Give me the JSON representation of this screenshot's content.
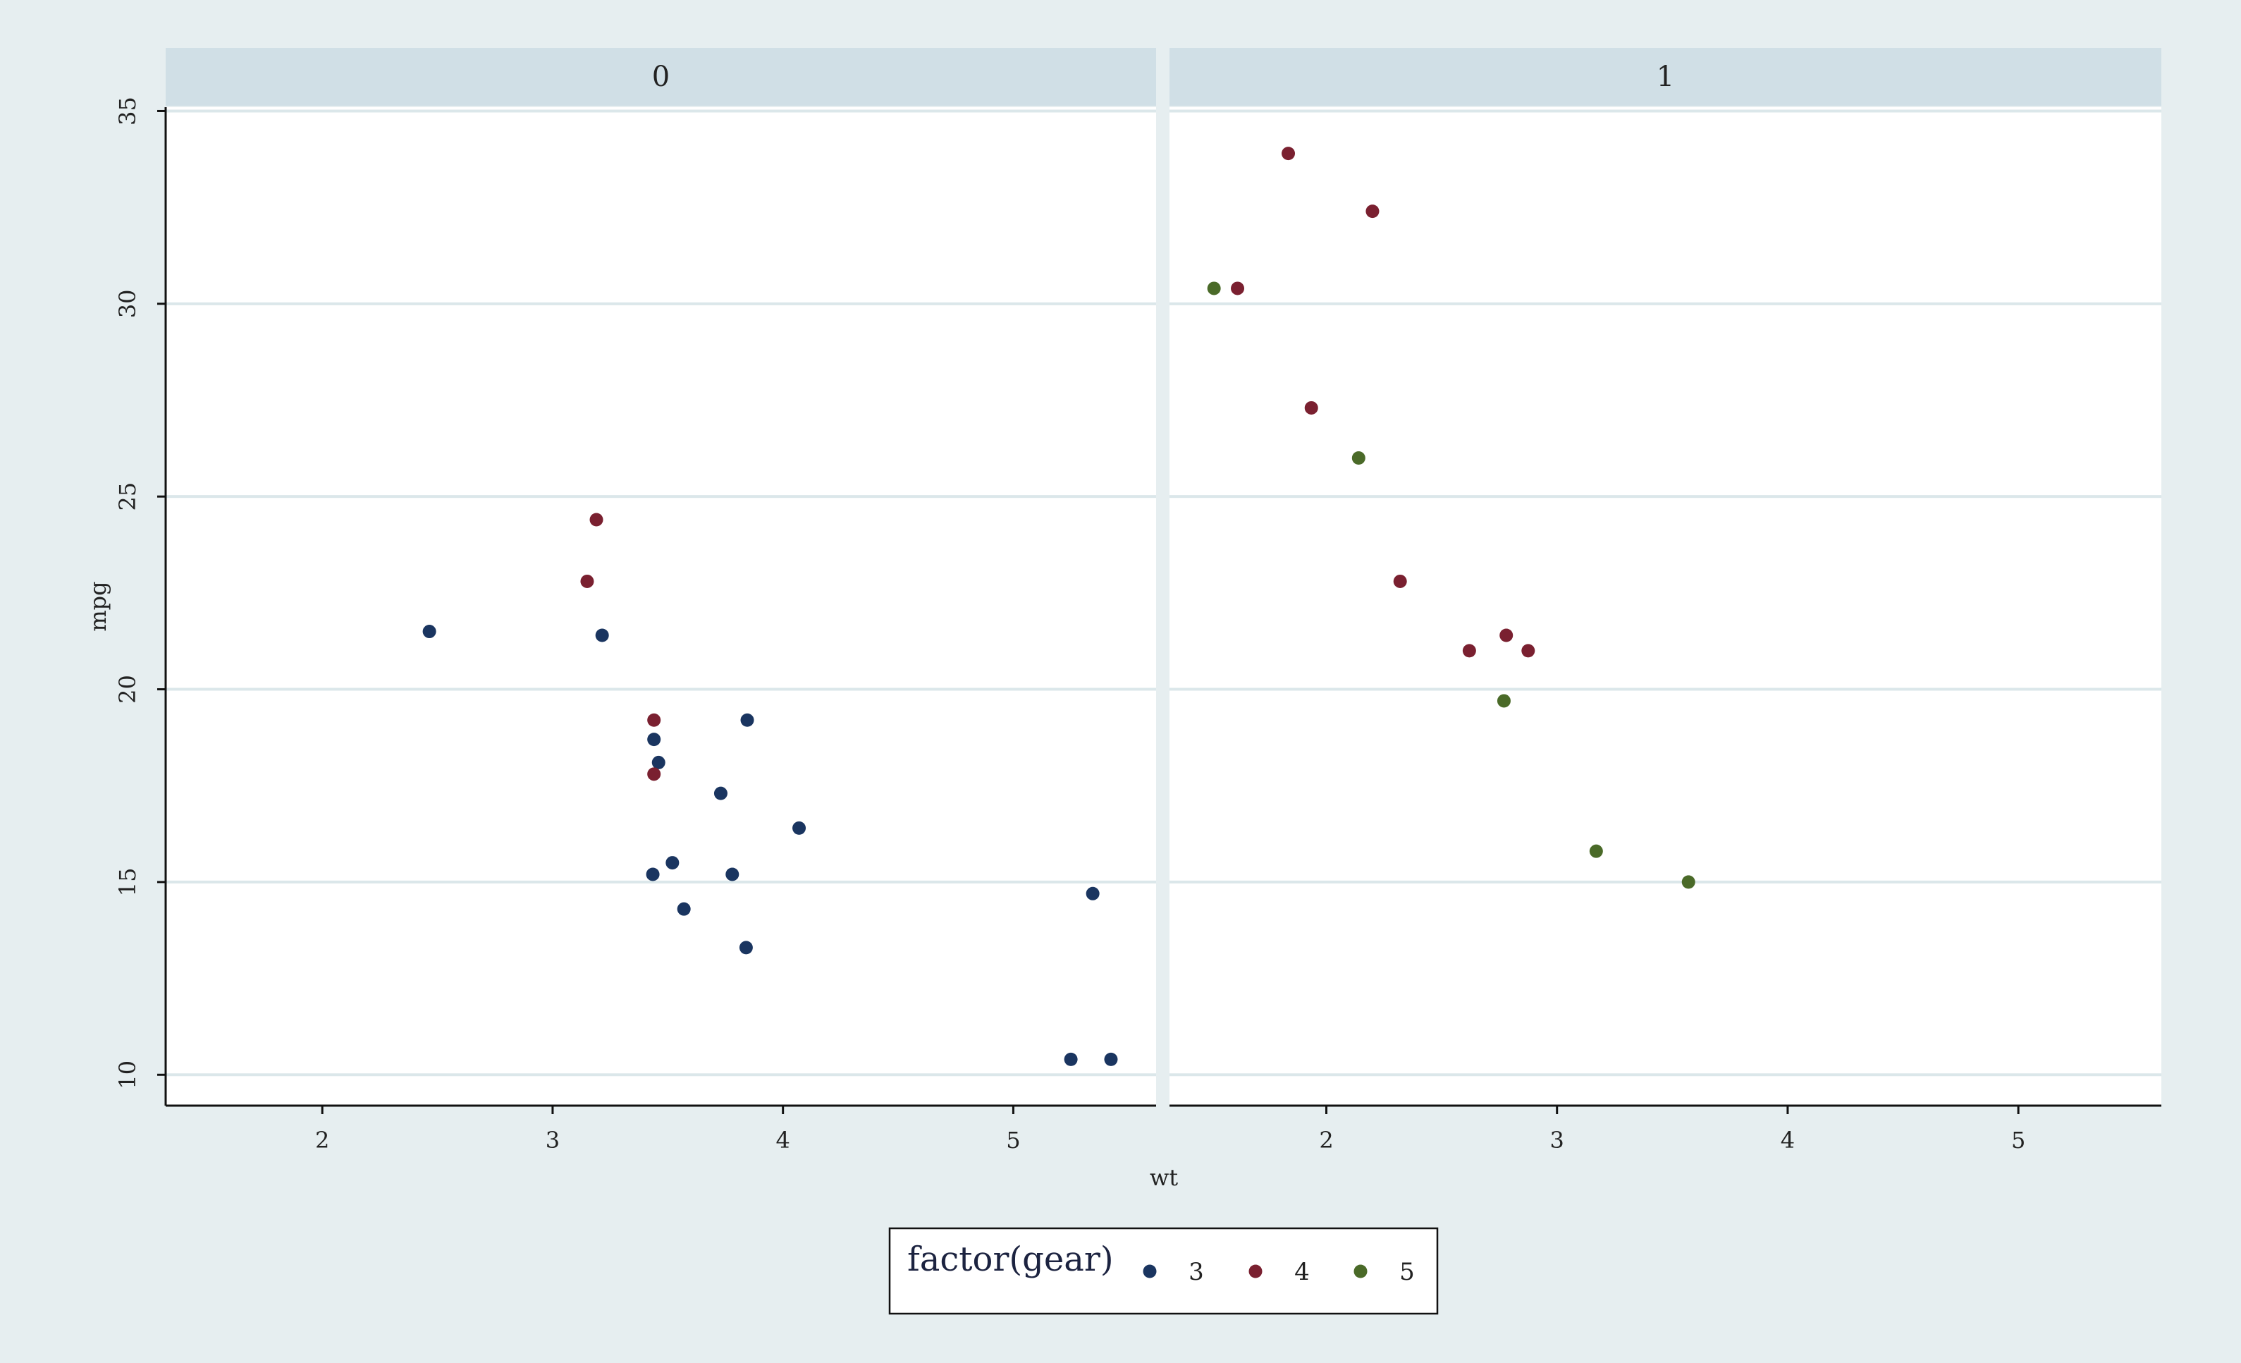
{
  "chart_data": {
    "type": "scatter",
    "facet_variable": "am",
    "facets": [
      "0",
      "1"
    ],
    "xlabel": "wt",
    "ylabel": "mpg",
    "xlim": [
      1.32,
      5.62
    ],
    "ylim": [
      9.2,
      35.1
    ],
    "xticks": [
      2,
      3,
      4,
      5
    ],
    "yticks": [
      10,
      15,
      20,
      25,
      30,
      35
    ],
    "grid": "horizontal",
    "legend": {
      "title": "factor(gear)",
      "position": "bottom",
      "entries": [
        {
          "label": "3",
          "color": "#1a3560"
        },
        {
          "label": "4",
          "color": "#7a2030"
        },
        {
          "label": "5",
          "color": "#4a6a28"
        }
      ]
    },
    "series": [
      {
        "name": "3",
        "color": "#1a3560",
        "points": [
          {
            "facet": "0",
            "x": 2.465,
            "y": 21.5
          },
          {
            "facet": "0",
            "x": 3.215,
            "y": 21.4
          },
          {
            "facet": "0",
            "x": 3.44,
            "y": 18.7
          },
          {
            "facet": "0",
            "x": 3.46,
            "y": 18.1
          },
          {
            "facet": "0",
            "x": 3.57,
            "y": 14.3
          },
          {
            "facet": "0",
            "x": 4.07,
            "y": 16.4
          },
          {
            "facet": "0",
            "x": 3.73,
            "y": 17.3
          },
          {
            "facet": "0",
            "x": 3.78,
            "y": 15.2
          },
          {
            "facet": "0",
            "x": 5.25,
            "y": 10.4
          },
          {
            "facet": "0",
            "x": 5.424,
            "y": 10.4
          },
          {
            "facet": "0",
            "x": 5.345,
            "y": 14.7
          },
          {
            "facet": "0",
            "x": 3.52,
            "y": 15.5
          },
          {
            "facet": "0",
            "x": 3.435,
            "y": 15.2
          },
          {
            "facet": "0",
            "x": 3.84,
            "y": 13.3
          },
          {
            "facet": "0",
            "x": 3.845,
            "y": 19.2
          }
        ]
      },
      {
        "name": "4",
        "color": "#7a2030",
        "points": [
          {
            "facet": "0",
            "x": 3.19,
            "y": 24.4
          },
          {
            "facet": "0",
            "x": 3.15,
            "y": 22.8
          },
          {
            "facet": "0",
            "x": 3.44,
            "y": 19.2
          },
          {
            "facet": "0",
            "x": 3.44,
            "y": 17.8
          },
          {
            "facet": "1",
            "x": 2.62,
            "y": 21.0
          },
          {
            "facet": "1",
            "x": 2.875,
            "y": 21.0
          },
          {
            "facet": "1",
            "x": 2.32,
            "y": 22.8
          },
          {
            "facet": "1",
            "x": 2.2,
            "y": 32.4
          },
          {
            "facet": "1",
            "x": 1.615,
            "y": 30.4
          },
          {
            "facet": "1",
            "x": 1.835,
            "y": 33.9
          },
          {
            "facet": "1",
            "x": 1.935,
            "y": 27.3
          },
          {
            "facet": "1",
            "x": 2.78,
            "y": 21.4
          }
        ]
      },
      {
        "name": "5",
        "color": "#4a6a28",
        "points": [
          {
            "facet": "1",
            "x": 2.14,
            "y": 26.0
          },
          {
            "facet": "1",
            "x": 1.513,
            "y": 30.4
          },
          {
            "facet": "1",
            "x": 3.17,
            "y": 15.8
          },
          {
            "facet": "1",
            "x": 2.77,
            "y": 19.7
          },
          {
            "facet": "1",
            "x": 3.57,
            "y": 15.0
          }
        ]
      }
    ]
  }
}
